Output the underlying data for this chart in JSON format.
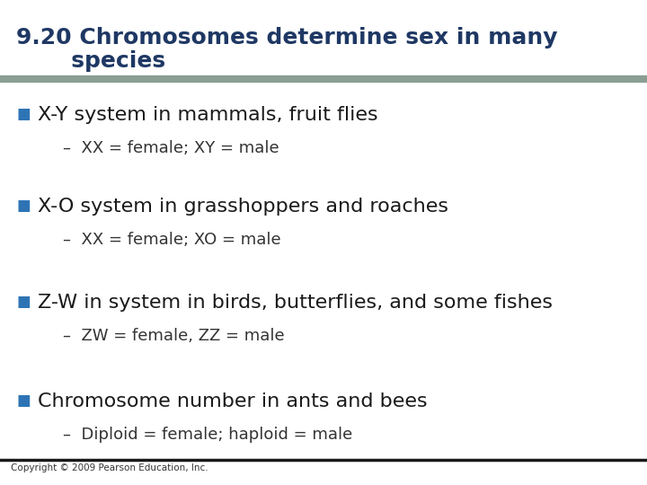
{
  "title_line1": "9.20 Chromosomes determine sex in many",
  "title_line2": "       species",
  "title_color": "#1F3864",
  "title_fontsize": 18,
  "header_bar_color": "#8A9E94",
  "background_color": "#FFFFFF",
  "bullet_color": "#2E74B5",
  "bullet_char": "■",
  "bullet_items": [
    {
      "text": "X-Y system in mammals, fruit flies",
      "sub": "XX = female; XY = male"
    },
    {
      "text": "X-O system in grasshoppers and roaches",
      "sub": "XX = female; XO = male"
    },
    {
      "text": "Z-W in system in birds, butterflies, and some fishes",
      "sub": "ZW = female, ZZ = male"
    },
    {
      "text": "Chromosome number in ants and bees",
      "sub": "Diploid = female; haploid = male"
    }
  ],
  "bullet_fontsize": 16,
  "sub_fontsize": 13,
  "footer_text": "Copyright © 2009 Pearson Education, Inc.",
  "footer_fontsize": 7.5,
  "footer_bar_color": "#1a1a1a",
  "sub_color": "#333333",
  "text_color": "#1a1a1a"
}
